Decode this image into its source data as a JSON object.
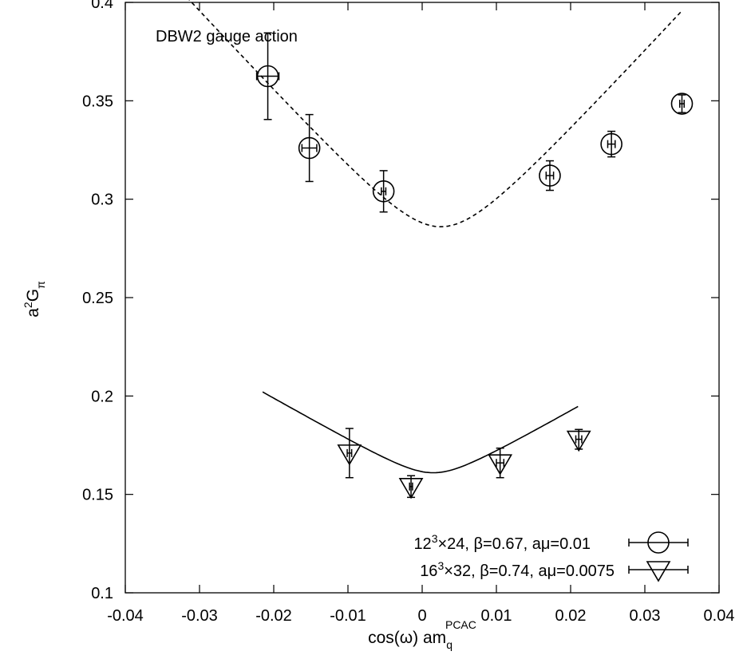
{
  "chart_data": {
    "type": "scatter",
    "xlim": [
      -0.04,
      0.04
    ],
    "ylim": [
      0.1,
      0.4
    ],
    "x_ticks": [
      -0.04,
      -0.03,
      -0.02,
      -0.01,
      0,
      0.01,
      0.02,
      0.03,
      0.04
    ],
    "x_tick_labels": [
      "-0.04",
      "-0.03",
      "-0.02",
      "-0.01",
      "0",
      "0.01",
      "0.02",
      "0.03",
      "0.04"
    ],
    "y_ticks": [
      0.1,
      0.15,
      0.2,
      0.25,
      0.3,
      0.35,
      0.4
    ],
    "y_tick_labels": [
      "0.1",
      "0.15",
      "0.2",
      "0.25",
      "0.3",
      "0.35",
      "0.4"
    ],
    "xlabel": {
      "main": "cos(ω) am",
      "sub": "q",
      "sup": "PCAC"
    },
    "ylabel": {
      "pre": "a",
      "sup": "2",
      "main": "G",
      "sub": "π"
    },
    "annotation": "DBW2 gauge action",
    "legend_position": "bottom-right",
    "grid": false,
    "series": [
      {
        "legend": {
          "pre": "12",
          "sup": "3",
          "post": "×24, β=0.67, aμ=0.01"
        },
        "marker": "circle",
        "points": [
          {
            "x": -0.0208,
            "y": 0.3625,
            "xerr": 0.0015,
            "yerr": 0.022
          },
          {
            "x": -0.0152,
            "y": 0.326,
            "xerr": 0.001,
            "yerr": 0.017
          },
          {
            "x": -0.0052,
            "y": 0.304,
            "xerr": 0.0003,
            "yerr": 0.0105
          },
          {
            "x": 0.0172,
            "y": 0.312,
            "xerr": 0.0005,
            "yerr": 0.0075
          },
          {
            "x": 0.0255,
            "y": 0.328,
            "xerr": 0.0005,
            "yerr": 0.0065
          },
          {
            "x": 0.035,
            "y": 0.3485,
            "xerr": 0.0003,
            "yerr": 0.0045
          }
        ],
        "fit_line": {
          "style": "dashed",
          "x": [
            -0.035,
            0.035
          ]
        }
      },
      {
        "legend": {
          "pre": "16",
          "sup": "3",
          "post": "×32, β=0.74, aμ=0.0075"
        },
        "marker": "triangle-down",
        "points": [
          {
            "x": -0.0098,
            "y": 0.171,
            "xerr": 0.0003,
            "yerr": 0.0125
          },
          {
            "x": -0.0015,
            "y": 0.154,
            "xerr": 0.0002,
            "yerr": 0.0055
          },
          {
            "x": 0.0105,
            "y": 0.166,
            "xerr": 0.0005,
            "yerr": 0.0075
          },
          {
            "x": 0.0211,
            "y": 0.178,
            "xerr": 0.0004,
            "yerr": 0.005
          }
        ],
        "fit_line": {
          "style": "solid",
          "x": [
            -0.0215,
            0.021
          ]
        }
      }
    ]
  }
}
